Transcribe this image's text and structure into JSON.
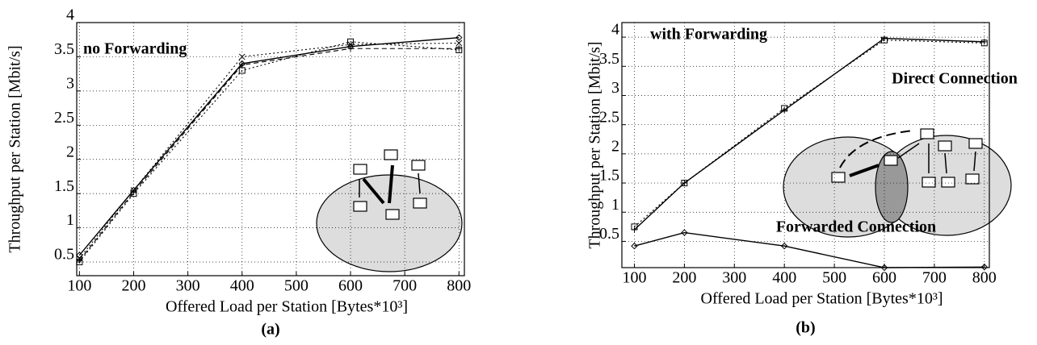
{
  "chart_data": [
    {
      "type": "line",
      "title": "no Forwarding",
      "x_label": "Offered Load per Station [Bytes*10³]",
      "y_label": "Throughput per Station [Mbit/s]",
      "caption": "(a)",
      "x": [
        100,
        200,
        400,
        600,
        800
      ],
      "series": [
        {
          "color": "#000000",
          "style": "solid",
          "marker": "diamond",
          "values": [
            0.6,
            1.55,
            3.4,
            3.65,
            3.78
          ]
        },
        {
          "color": "#000000",
          "style": "dotted",
          "marker": "cross",
          "values": [
            0.55,
            1.55,
            3.5,
            3.68,
            3.7
          ]
        },
        {
          "color": "#000000",
          "style": "dotted",
          "marker": "square",
          "values": [
            0.5,
            1.5,
            3.3,
            3.72,
            3.6
          ]
        },
        {
          "color": "#000000",
          "style": "dashed",
          "marker": "plus",
          "values": [
            0.52,
            1.52,
            3.38,
            3.62,
            3.62
          ]
        }
      ],
      "xlim": [
        95,
        810
      ],
      "ylim": [
        0.3,
        4.0
      ],
      "xticks": [
        100,
        200,
        300,
        400,
        500,
        600,
        700,
        800
      ],
      "yticks": [
        0.5,
        1,
        1.5,
        2,
        2.5,
        3,
        3.5,
        4
      ],
      "grid": true
    },
    {
      "type": "line",
      "title": "with Forwarding",
      "x_label": "Offered Load per Station [Bytes*10³]",
      "y_label": "Throughput per Station [Mbit/s]",
      "caption": "(b)",
      "annotations": [
        "Direct Connection",
        "Forwarded Connection"
      ],
      "x": [
        100,
        200,
        400,
        600,
        800
      ],
      "series": [
        {
          "color": "#000000",
          "style": "solid",
          "marker": "plus",
          "values": [
            0.7,
            1.5,
            2.75,
            3.98,
            3.92
          ]
        },
        {
          "color": "#000000",
          "style": "dotted",
          "marker": "square",
          "values": [
            0.75,
            1.5,
            2.78,
            3.95,
            3.9
          ]
        },
        {
          "color": "#000000",
          "style": "solid",
          "marker": "diamond",
          "values": [
            0.42,
            0.65,
            0.42,
            0.05,
            0.06
          ]
        }
      ],
      "xlim": [
        75,
        810
      ],
      "ylim": [
        0.05,
        4.25
      ],
      "xticks": [
        100,
        200,
        300,
        400,
        500,
        600,
        700,
        800
      ],
      "yticks": [
        0.5,
        1,
        1.5,
        2,
        2.5,
        3,
        3.5,
        4
      ],
      "grid": true
    }
  ]
}
